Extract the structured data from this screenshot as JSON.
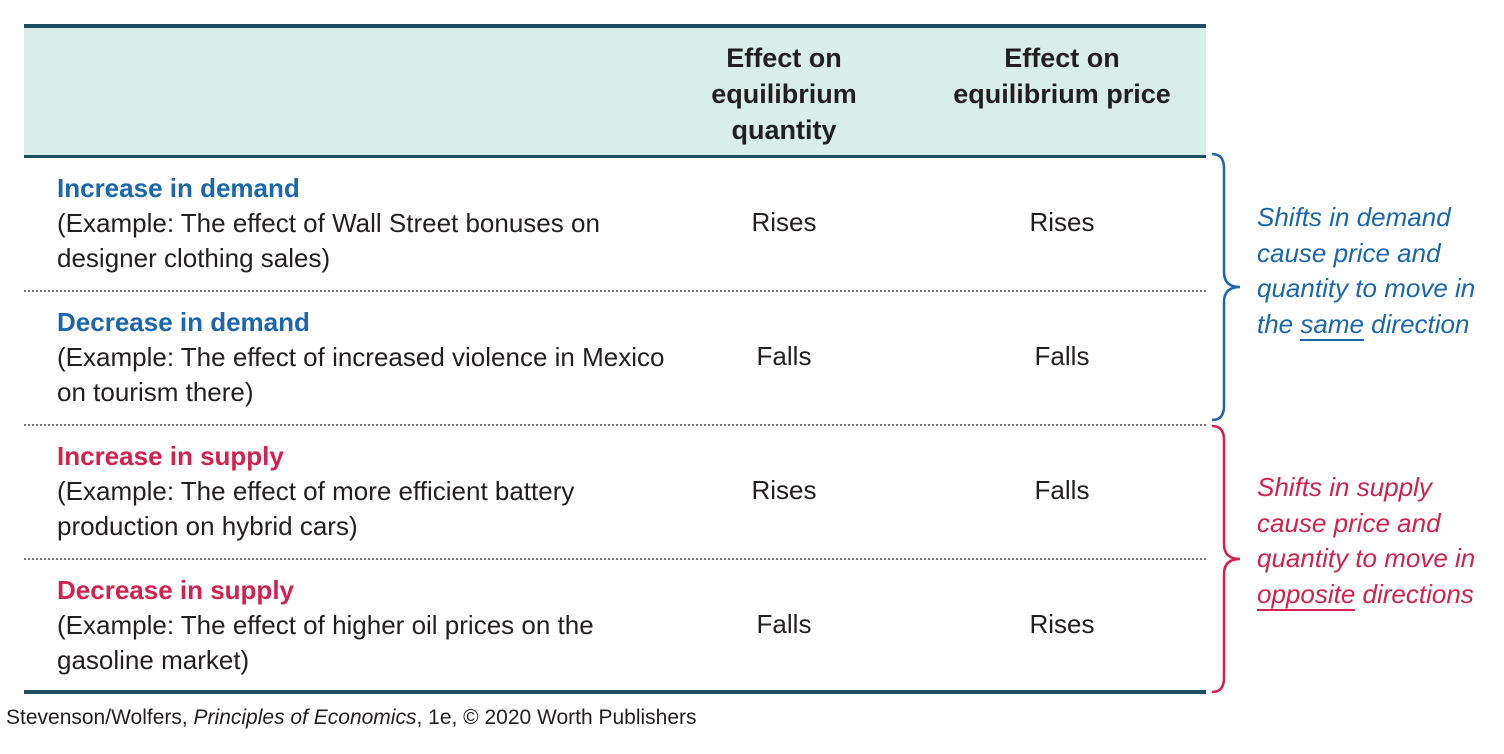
{
  "header": {
    "col_quantity": "Effect on equilibrium quantity",
    "col_price": "Effect on equilibrium price"
  },
  "rows": [
    {
      "title": "Increase in demand",
      "description": "(Example: The effect of Wall Street bonuses on designer clothing sales)",
      "quantity": "Rises",
      "price": "Rises"
    },
    {
      "title": "Decrease in demand",
      "description": "(Example: The effect of increased violence in Mexico on tourism there)",
      "quantity": "Falls",
      "price": "Falls"
    },
    {
      "title": "Increase in supply",
      "description": "(Example: The effect of more efficient battery production on hybrid cars)",
      "quantity": "Rises",
      "price": "Falls"
    },
    {
      "title": "Decrease in supply",
      "description": "(Example: The effect of higher oil prices on the gasoline market)",
      "quantity": "Falls",
      "price": "Rises"
    }
  ],
  "notes": {
    "demand": {
      "before": "Shifts in demand cause price and quantity to move in the ",
      "emphasis": "same",
      "after": " direction"
    },
    "supply": {
      "before": "Shifts in supply cause price and quantity to move in ",
      "emphasis": "opposite",
      "after": " directions"
    }
  },
  "credit": {
    "authors": "Stevenson/Wolfers, ",
    "book": "Principles of Economics",
    "rest": ", 1e, © 2020 Worth Publishers"
  },
  "colors": {
    "demand": "#1a67ad",
    "supply": "#d2224d",
    "header_bg": "#d8efe9",
    "rule": "#1f4e63"
  }
}
